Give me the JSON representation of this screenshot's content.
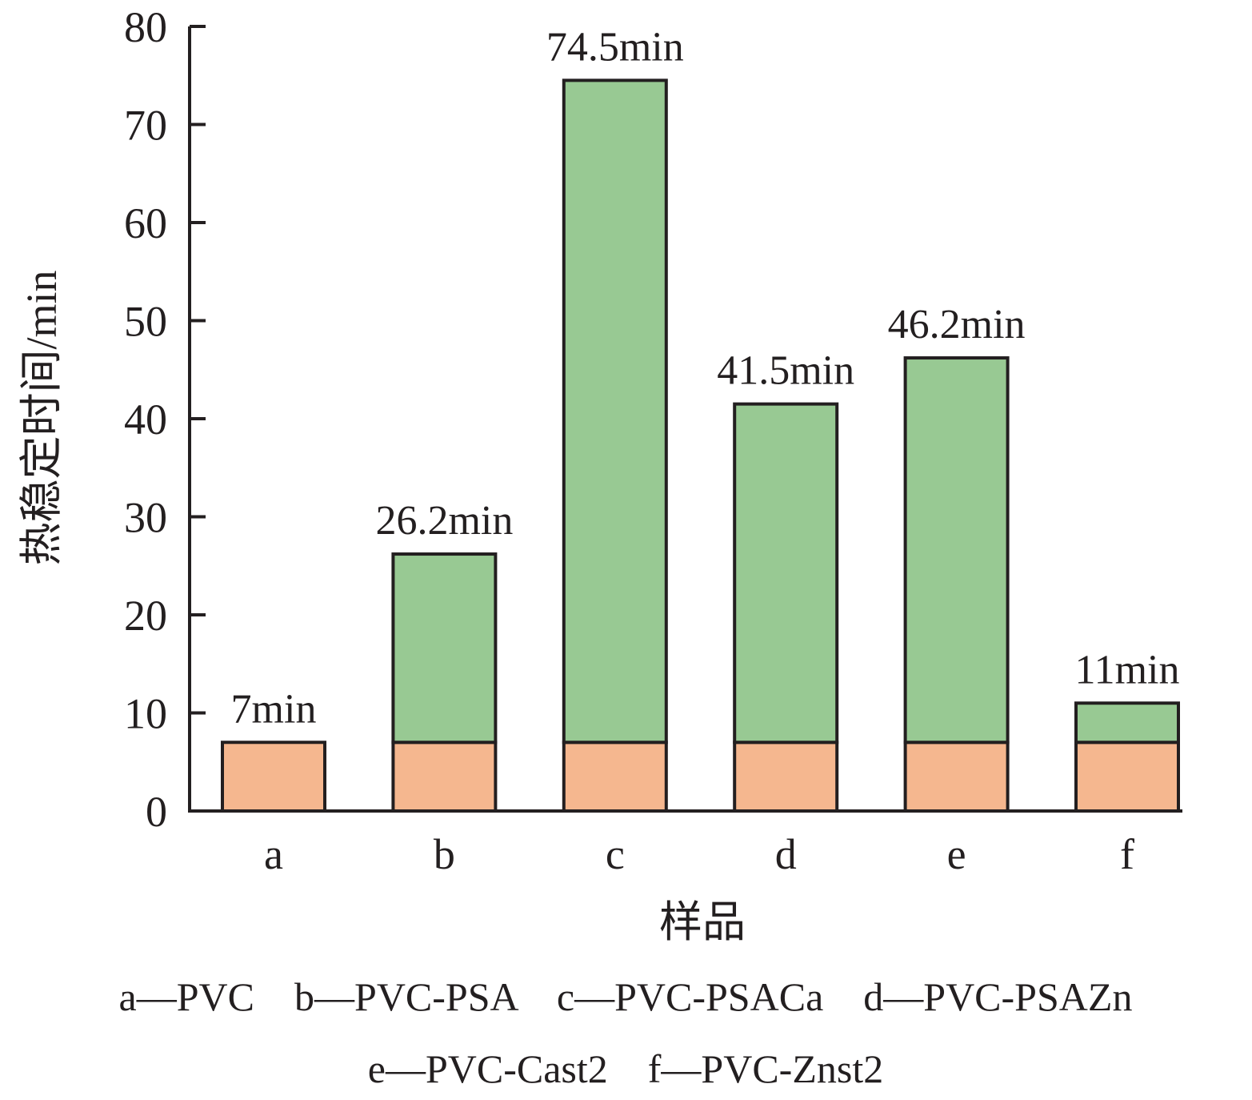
{
  "chart_data": {
    "type": "bar",
    "stacked": true,
    "title": "",
    "xlabel": "样品",
    "ylabel": "热稳定时间/min",
    "ylim": [
      0,
      80
    ],
    "yticks": [
      0,
      10,
      20,
      30,
      40,
      50,
      60,
      70,
      80
    ],
    "categories": [
      "a",
      "b",
      "c",
      "d",
      "e",
      "f"
    ],
    "totals": [
      7,
      26.2,
      74.5,
      41.5,
      46.2,
      11
    ],
    "series": [
      {
        "values": [
          7,
          7,
          7,
          7,
          7,
          7
        ],
        "color": "#f5b78f"
      },
      {
        "values": [
          0,
          19.2,
          67.5,
          34.5,
          39.2,
          4
        ],
        "color": "#98c993"
      }
    ],
    "data_labels": [
      "7min",
      "26.2min",
      "74.5min",
      "41.5min",
      "46.2min",
      "11min"
    ],
    "grid": false,
    "legend_lines": [
      "a—PVC    b—PVC-PSA    c—PVC-PSACa    d—PVC-PSAZn",
      "e—PVC-Cast2    f—PVC-Znst2"
    ]
  }
}
